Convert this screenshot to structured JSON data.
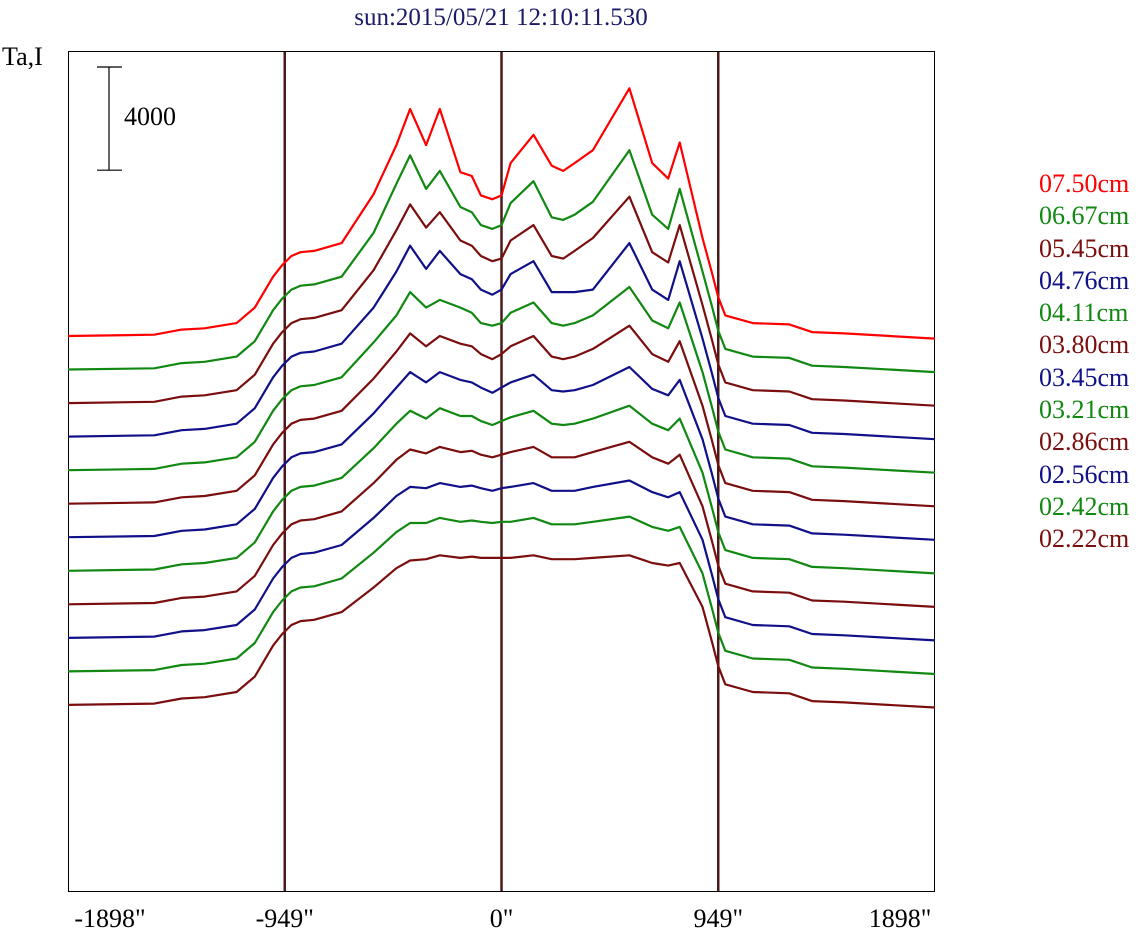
{
  "chart_data": {
    "type": "line",
    "title": "sun:2015/05/21 12:10:11.530",
    "ylabel": "Ta,I",
    "scale_bar_label": "4000",
    "scale_bar_value": 4000,
    "xlim": [
      -1898,
      1898
    ],
    "x_ticks": [
      {
        "value": -1898,
        "label": "-1898\""
      },
      {
        "value": -949,
        "label": "-949\""
      },
      {
        "value": 0,
        "label": "0\""
      },
      {
        "value": 949,
        "label": "949\""
      },
      {
        "value": 1898,
        "label": "1898\""
      }
    ],
    "vertical_lines": [
      -949,
      0,
      949
    ],
    "line_color": "#4a1a1a",
    "x": [
      -1898,
      -1520,
      -1400,
      -1300,
      -1160,
      -1080,
      -1000,
      -960,
      -920,
      -880,
      -820,
      -700,
      -560,
      -460,
      -400,
      -330,
      -270,
      -180,
      -130,
      -90,
      -40,
      0,
      40,
      140,
      220,
      270,
      320,
      400,
      560,
      660,
      730,
      780,
      880,
      920,
      949,
      980,
      1100,
      1260,
      1360,
      1500,
      1898
    ],
    "series": [
      {
        "name": "07.50cm",
        "color": "#ff0000",
        "offset": 0,
        "values": [
          0,
          50,
          250,
          300,
          500,
          1100,
          2300,
          2750,
          3100,
          3250,
          3300,
          3600,
          5500,
          7400,
          8800,
          7400,
          8800,
          6350,
          6200,
          5450,
          5300,
          5450,
          6700,
          7800,
          6600,
          6400,
          6700,
          7200,
          9600,
          6700,
          6100,
          7500,
          3800,
          2500,
          1500,
          800,
          500,
          450,
          150,
          100,
          -100
        ]
      },
      {
        "name": "06.67cm",
        "color": "#118811",
        "offset": -1300,
        "values": [
          0,
          50,
          250,
          300,
          500,
          1100,
          2300,
          2750,
          3100,
          3250,
          3300,
          3600,
          5300,
          7200,
          8300,
          7000,
          7700,
          6300,
          6100,
          5600,
          5450,
          5600,
          6450,
          7300,
          5900,
          5800,
          6000,
          6500,
          8500,
          6000,
          5450,
          7000,
          3800,
          2500,
          1500,
          800,
          500,
          450,
          150,
          100,
          -100
        ]
      },
      {
        "name": "05.45cm",
        "color": "#7a0e0e",
        "offset": -2600,
        "values": [
          0,
          50,
          250,
          300,
          500,
          1100,
          2300,
          2750,
          3100,
          3250,
          3300,
          3600,
          5150,
          6700,
          7700,
          6800,
          7400,
          6300,
          6100,
          5700,
          5500,
          5600,
          6300,
          6900,
          5700,
          5600,
          5900,
          6400,
          8000,
          5850,
          5450,
          6900,
          3800,
          2500,
          1500,
          800,
          500,
          450,
          150,
          100,
          -100
        ]
      },
      {
        "name": "04.76cm",
        "color": "#101088",
        "offset": -3900,
        "values": [
          0,
          50,
          250,
          300,
          500,
          1100,
          2300,
          2750,
          3100,
          3250,
          3300,
          3600,
          5000,
          6400,
          7400,
          6500,
          7200,
          6300,
          6100,
          5700,
          5500,
          5700,
          6300,
          6800,
          5600,
          5600,
          5600,
          5700,
          7500,
          5700,
          5300,
          6800,
          3800,
          2500,
          1500,
          800,
          500,
          450,
          150,
          100,
          -100
        ]
      },
      {
        "name": "04.11cm",
        "color": "#118811",
        "offset": -5200,
        "values": [
          0,
          50,
          250,
          300,
          500,
          1100,
          2300,
          2750,
          3100,
          3250,
          3300,
          3600,
          4950,
          6000,
          6900,
          6300,
          6600,
          6300,
          6100,
          5700,
          5600,
          5700,
          6100,
          6500,
          5700,
          5600,
          5700,
          6000,
          7100,
          5800,
          5500,
          6500,
          3800,
          2500,
          1500,
          800,
          500,
          450,
          150,
          100,
          -100
        ]
      },
      {
        "name": "03.80cm",
        "color": "#7a0e0e",
        "offset": -6500,
        "values": [
          0,
          50,
          250,
          300,
          500,
          1100,
          2300,
          2750,
          3100,
          3250,
          3300,
          3600,
          4850,
          5900,
          6600,
          6100,
          6500,
          6200,
          6100,
          5800,
          5600,
          5800,
          6100,
          6500,
          5700,
          5600,
          5700,
          6000,
          6900,
          5800,
          5500,
          6300,
          3800,
          2500,
          1500,
          800,
          500,
          450,
          150,
          100,
          -100
        ]
      },
      {
        "name": "03.45cm",
        "color": "#101088",
        "offset": -7800,
        "values": [
          0,
          50,
          250,
          300,
          500,
          1100,
          2300,
          2750,
          3100,
          3250,
          3300,
          3600,
          4800,
          5800,
          6400,
          6000,
          6400,
          6100,
          6000,
          5800,
          5600,
          5800,
          6000,
          6300,
          5700,
          5650,
          5700,
          5900,
          6600,
          5750,
          5500,
          6100,
          3800,
          2500,
          1500,
          800,
          500,
          450,
          150,
          100,
          -100
        ]
      },
      {
        "name": "03.21cm",
        "color": "#118811",
        "offset": -9100,
        "values": [
          0,
          50,
          250,
          300,
          500,
          1100,
          2300,
          2750,
          3100,
          3250,
          3300,
          3600,
          4750,
          5700,
          6200,
          5900,
          6300,
          6000,
          6000,
          5800,
          5650,
          5800,
          5950,
          6200,
          5700,
          5650,
          5700,
          5900,
          6400,
          5700,
          5450,
          5900,
          3800,
          2500,
          1500,
          800,
          500,
          450,
          150,
          100,
          -100
        ]
      },
      {
        "name": "02.86cm",
        "color": "#7a0e0e",
        "offset": -10400,
        "values": [
          0,
          50,
          250,
          300,
          500,
          1100,
          2300,
          2750,
          3100,
          3250,
          3300,
          3600,
          4700,
          5600,
          6000,
          5850,
          6100,
          5900,
          5950,
          5800,
          5700,
          5800,
          5900,
          6100,
          5700,
          5700,
          5700,
          5900,
          6300,
          5700,
          5450,
          5800,
          3800,
          2500,
          1500,
          800,
          500,
          450,
          150,
          100,
          -100
        ]
      },
      {
        "name": "02.56cm",
        "color": "#101088",
        "offset": -11700,
        "values": [
          0,
          50,
          250,
          300,
          500,
          1100,
          2300,
          2750,
          3100,
          3250,
          3300,
          3600,
          4650,
          5500,
          5850,
          5800,
          6000,
          5850,
          5900,
          5800,
          5700,
          5800,
          5850,
          6000,
          5700,
          5700,
          5700,
          5850,
          6100,
          5650,
          5450,
          5650,
          3800,
          2500,
          1500,
          800,
          500,
          450,
          150,
          100,
          -100
        ]
      },
      {
        "name": "02.42cm",
        "color": "#118811",
        "offset": -13000,
        "values": [
          0,
          50,
          250,
          300,
          500,
          1100,
          2300,
          2750,
          3100,
          3250,
          3300,
          3600,
          4600,
          5400,
          5750,
          5750,
          5950,
          5800,
          5850,
          5800,
          5750,
          5800,
          5800,
          5950,
          5700,
          5700,
          5700,
          5800,
          6000,
          5600,
          5450,
          5600,
          3800,
          2500,
          1500,
          800,
          500,
          450,
          150,
          100,
          -100
        ]
      },
      {
        "name": "02.22cm",
        "color": "#7a0e0e",
        "offset": -14300,
        "values": [
          0,
          50,
          250,
          300,
          500,
          1100,
          2300,
          2750,
          3100,
          3250,
          3300,
          3600,
          4550,
          5300,
          5600,
          5650,
          5800,
          5700,
          5750,
          5700,
          5700,
          5700,
          5700,
          5800,
          5650,
          5650,
          5650,
          5700,
          5800,
          5500,
          5400,
          5500,
          3800,
          2500,
          1500,
          800,
          500,
          450,
          150,
          100,
          -100
        ]
      }
    ]
  }
}
